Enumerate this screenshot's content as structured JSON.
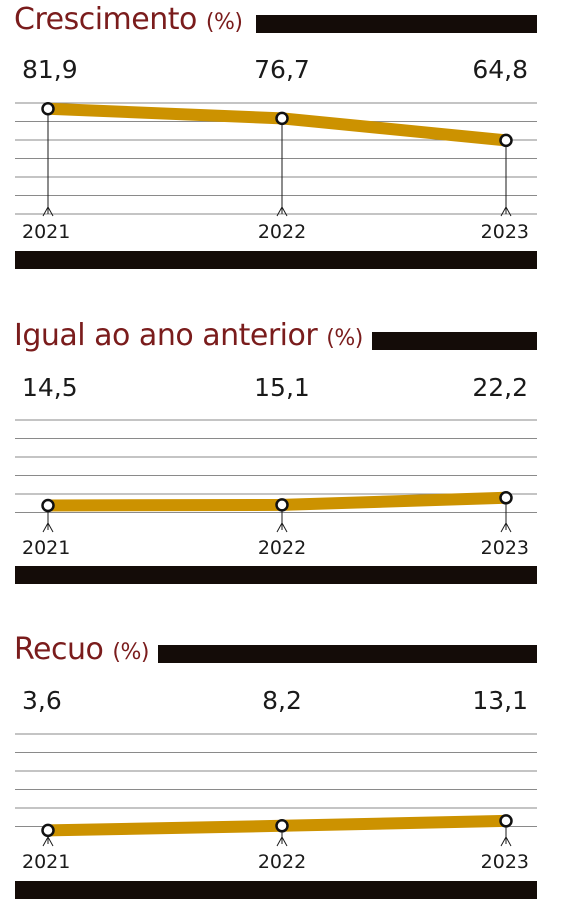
{
  "colors": {
    "title": "#7a1c1c",
    "line": "#cc9200",
    "bar": "#140c08",
    "grid": "#8a8a8a"
  },
  "chart_data": [
    {
      "type": "line",
      "title": "Crescimento",
      "unit": "(%)",
      "categories": [
        "2021",
        "2022",
        "2023"
      ],
      "values": [
        81.9,
        76.7,
        64.8
      ],
      "value_labels": [
        "81,9",
        "76,7",
        "64,8"
      ],
      "ylim": [
        25,
        85
      ],
      "grid": true
    },
    {
      "type": "line",
      "title": "Igual ao ano anterior",
      "unit": "(%)",
      "categories": [
        "2021",
        "2022",
        "2023"
      ],
      "values": [
        14.5,
        15.1,
        22.2
      ],
      "value_labels": [
        "14,5",
        "15,1",
        "22,2"
      ],
      "ylim": [
        -10,
        100
      ],
      "grid": true
    },
    {
      "type": "line",
      "title": "Recuo",
      "unit": "(%)",
      "categories": [
        "2021",
        "2022",
        "2023"
      ],
      "values": [
        3.6,
        8.2,
        13.1
      ],
      "value_labels": [
        "3,6",
        "8,2",
        "13,1"
      ],
      "ylim": [
        -10,
        100
      ],
      "grid": true
    }
  ]
}
